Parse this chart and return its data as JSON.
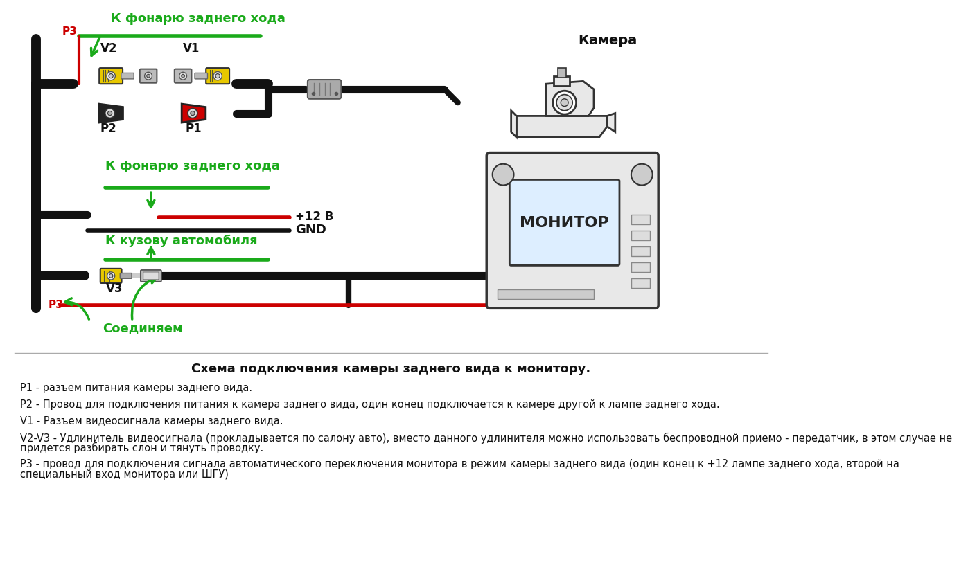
{
  "bg_color": "#ffffff",
  "title": "Схема подключения камеры заднего вида к монитору.",
  "green": "#1aaa1a",
  "red": "#cc0000",
  "black": "#111111",
  "yellow": "#e8c800",
  "gray": "#aaaaaa",
  "darkgray": "#666666",
  "lightgray": "#cccccc",
  "label_top_green": "К фонарю заднего хода",
  "label_camera": "Камера",
  "label_monitor": "МОНИТОР",
  "label_soedinyaem": "Соединяем",
  "label_k_fonary2": "К фонарю заднего хода",
  "label_k_kuzovu": "К кузову автомобиля",
  "label_plus12": "+12 В",
  "label_gnd": "GND",
  "desc_title": "Схема подключения камеры заднего вида к монитору.",
  "desc_lines": [
    "P1 - разъем питания камеры заднего вида.",
    "P2 - Провод для подключения питания к камера заднего вида, один конец подключается к камере другой к лампе заднего хода.",
    "V1 - Разъем видеосигнала камеры заднего вида.",
    "V2-V3 - Удлинитель видеосигнала (прокладывается по салону авто), вместо данного удлинителя можно использовать беспроводной приемо - передатчик, в этом случае не придется разбирать слон и тянуть проводку.",
    "Р3 - провод для подключения сигнала автоматического переключения монитора в режим камеры заднего вида (один конец к +12 лампе заднего хода, второй на специальный вход монитора или ШГУ)"
  ]
}
